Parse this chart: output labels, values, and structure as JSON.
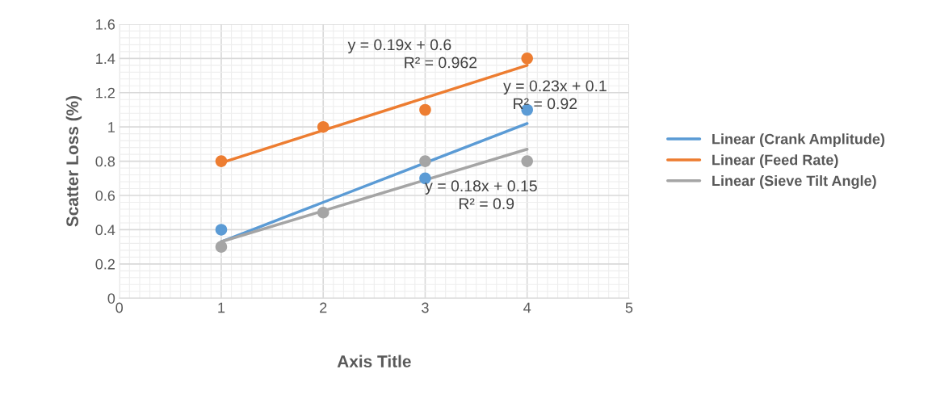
{
  "chart_data": {
    "type": "scatter",
    "xlabel": "Axis Title",
    "ylabel": "Scatter Loss (%)",
    "x": [
      1,
      2,
      3,
      4
    ],
    "series": [
      {
        "color": "#5b9bd5",
        "marker": "circle",
        "values": [
          0.4,
          null,
          0.7,
          1.1
        ]
      },
      {
        "color": "#ed7d31",
        "marker": "circle",
        "values": [
          0.8,
          1.0,
          1.1,
          1.4
        ]
      },
      {
        "color": "#a5a5a5",
        "marker": "circle",
        "values": [
          0.3,
          0.5,
          0.8,
          0.8
        ]
      },
      {
        "type": "line",
        "name": "Linear (Crank Amplitude)",
        "color": "#5b9bd5",
        "values": [
          0.33,
          0.56,
          0.79,
          1.02
        ]
      },
      {
        "type": "line",
        "name": "Linear (Feed Rate)",
        "color": "#ed7d31",
        "values": [
          0.79,
          0.98,
          1.17,
          1.36
        ]
      },
      {
        "type": "line",
        "name": "Linear (Sieve Tilt Angle)",
        "color": "#a5a5a5",
        "values": [
          0.33,
          0.51,
          0.69,
          0.87
        ]
      }
    ],
    "annotations": [
      "y = 0.19x + 0.6",
      "R² = 0.962",
      "y = 0.23x + 0.1",
      "R² = 0.92",
      "y = 0.18x + 0.15",
      "R² = 0.9"
    ],
    "xlim": [
      0,
      5
    ],
    "xticks": [
      0,
      1,
      2,
      3,
      4,
      5
    ],
    "ylim": [
      0,
      1.6
    ],
    "yticks": [
      0,
      0.2,
      0.4,
      0.6,
      0.8,
      1,
      1.2,
      1.4,
      1.6
    ],
    "grid": true,
    "legend": "right"
  }
}
